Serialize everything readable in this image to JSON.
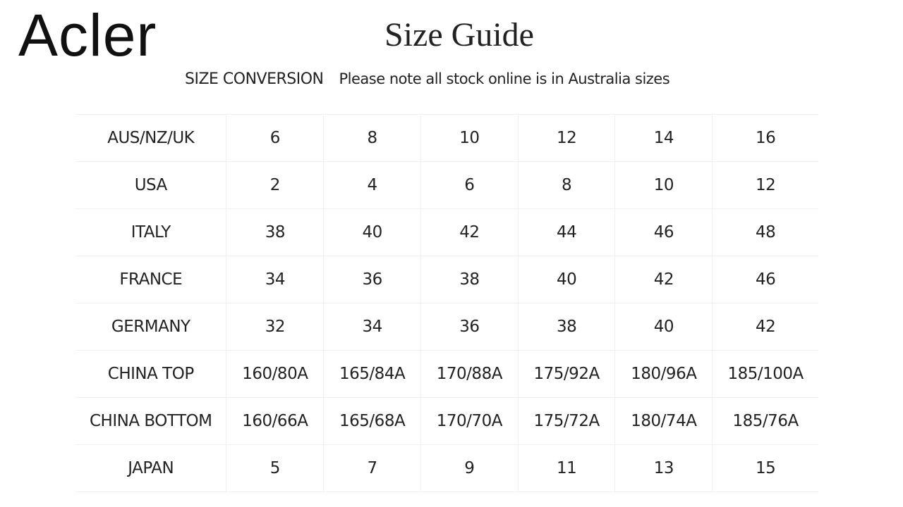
{
  "brand": {
    "logo_text": "Acler"
  },
  "header": {
    "title": "Size Guide",
    "subtitle": "SIZE CONVERSION",
    "note": "Please note all stock online is in Australia sizes"
  },
  "table": {
    "rows": [
      {
        "label": "AUS/NZ/UK",
        "values": [
          "6",
          "8",
          "10",
          "12",
          "14",
          "16"
        ]
      },
      {
        "label": "USA",
        "values": [
          "2",
          "4",
          "6",
          "8",
          "10",
          "12"
        ]
      },
      {
        "label": "ITALY",
        "values": [
          "38",
          "40",
          "42",
          "44",
          "46",
          "48"
        ]
      },
      {
        "label": "FRANCE",
        "values": [
          "34",
          "36",
          "38",
          "40",
          "42",
          "46"
        ]
      },
      {
        "label": "GERMANY",
        "values": [
          "32",
          "34",
          "36",
          "38",
          "40",
          "42"
        ]
      },
      {
        "label": "CHINA TOP",
        "values": [
          "160/80A",
          "165/84A",
          "170/88A",
          "175/92A",
          "180/96A",
          "185/100A"
        ]
      },
      {
        "label": "CHINA BOTTOM",
        "values": [
          "160/66A",
          "165/68A",
          "170/70A",
          "175/72A",
          "180/74A",
          "185/76A"
        ]
      },
      {
        "label": "JAPAN",
        "values": [
          "5",
          "7",
          "9",
          "11",
          "13",
          "15"
        ]
      }
    ]
  }
}
